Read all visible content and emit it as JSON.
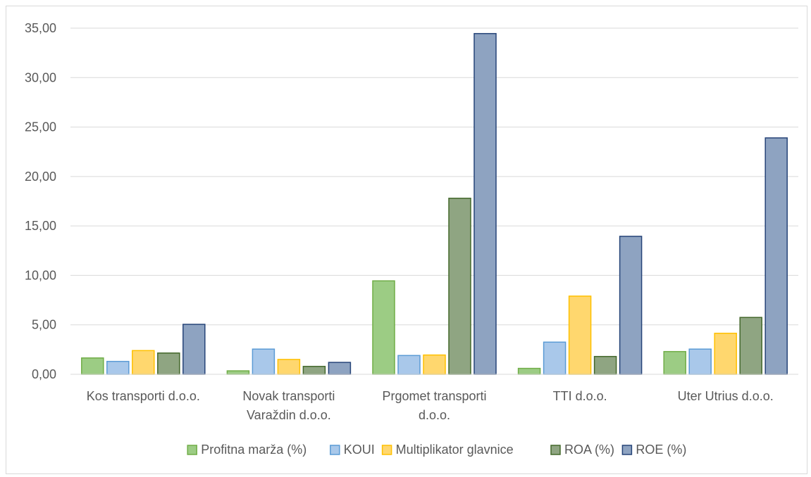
{
  "chart_data": {
    "type": "bar",
    "title": "",
    "xlabel": "",
    "ylabel": "",
    "ylim": [
      0,
      35
    ],
    "ytick_step": 5,
    "ytick_labels": [
      "0,00",
      "5,00",
      "10,00",
      "15,00",
      "20,00",
      "25,00",
      "30,00",
      "35,00"
    ],
    "grid": true,
    "legend_position": "bottom",
    "categories": [
      [
        "Kos transporti d.o.o."
      ],
      [
        "Novak transporti",
        "Varaždin d.o.o."
      ],
      [
        "Prgomet transporti",
        "d.o.o."
      ],
      [
        "TTI d.o.o."
      ],
      [
        "Uter Utrius d.o.o."
      ]
    ],
    "series": [
      {
        "name": "Profitna marža (%)",
        "color": "#9ccc84",
        "stroke": "#70ad47",
        "values": [
          1.65,
          0.35,
          9.45,
          0.6,
          2.3
        ]
      },
      {
        "name": "KOUI",
        "color": "#a9c8ea",
        "stroke": "#5b9bd5",
        "values": [
          1.3,
          2.55,
          1.9,
          3.25,
          2.55
        ]
      },
      {
        "name": "Multiplikator glavnice",
        "color": "#ffd76e",
        "stroke": "#ffc000",
        "values": [
          2.4,
          1.5,
          1.95,
          7.9,
          4.15
        ]
      },
      {
        "name": "ROA (%)",
        "color": "#8fa582",
        "stroke": "#43682b",
        "values": [
          2.15,
          0.8,
          17.8,
          1.8,
          5.75
        ]
      },
      {
        "name": "ROE (%)",
        "color": "#8ea3c1",
        "stroke": "#264478",
        "values": [
          5.05,
          1.2,
          34.45,
          13.95,
          23.9
        ]
      }
    ]
  }
}
